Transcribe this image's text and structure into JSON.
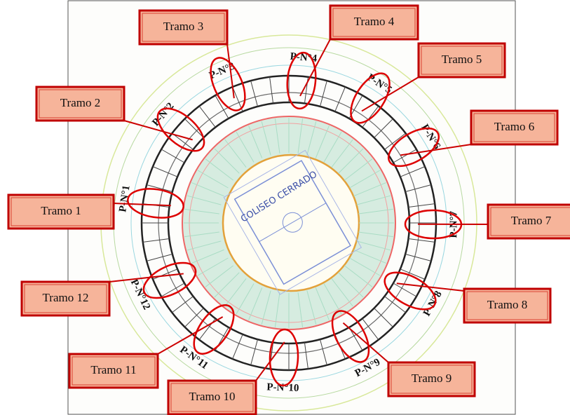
{
  "court_label": "COLISEO CERRADO",
  "callouts": [
    {
      "label": "Tramo 1",
      "tag": "P-N°1"
    },
    {
      "label": "Tramo 2",
      "tag": "P-N°2"
    },
    {
      "label": "Tramo 3",
      "tag": "P-N°3"
    },
    {
      "label": "Tramo 4",
      "tag": "P-N°4"
    },
    {
      "label": "Tramo 5",
      "tag": "P-N°5"
    },
    {
      "label": "Tramo 6",
      "tag": "P-N°6"
    },
    {
      "label": "Tramo 7",
      "tag": "P-N°7"
    },
    {
      "label": "Tramo 8",
      "tag": "P-N°8"
    },
    {
      "label": "Tramo 9",
      "tag": "P-N°9"
    },
    {
      "label": "Tramo 10",
      "tag": "P-N°10"
    },
    {
      "label": "Tramo 11",
      "tag": "P-N°11"
    },
    {
      "label": "Tramo 12",
      "tag": "P-N°12"
    }
  ]
}
